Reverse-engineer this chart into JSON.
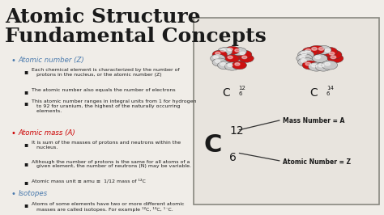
{
  "title_line1": "Atomic Structure",
  "title_line2": "Fundamental Concepts",
  "title_color": "#1a1a1a",
  "title_fontsize": 18,
  "bg_color": "#f0ede8",
  "bullet_color_red": "#cc0000",
  "bullet_color_blue": "#4a7aad",
  "text_color": "#1a1a1a",
  "heading1": "Atomic number (Z)",
  "heading1_color": "#4a7aad",
  "sub1a": "Each chemical element is characterized by the number of\n   protons in the nucleus, or the atomic number (Z)",
  "sub1b": "The atomic number also equals the number of electrons",
  "sub1c": "This atomic number ranges in integral units from 1 for hydrogen\n   to 92 for uranium, the highest of the naturally occurring\n   elements.",
  "heading2": "Atomic mass (A)",
  "heading2_color": "#cc0000",
  "sub2a": "It is sum of the masses of protons and neutrons within the\n   nucleus.",
  "sub2b": "Although the number of protons is the same for all atoms of a\n   given element, the number of neutrons (N) may be variable.",
  "sub2c": "Atomic mass unit ≡ amu ≡  1/12 mass of ¹²C",
  "heading3": "Isotopes",
  "heading3_color": "#4a7aad",
  "sub3a": "Atoms of some elements have two or more different atomic\n   masses are called isotopes. For example ¹²C, ¹³C, ¹´C.",
  "mass_number_label": "Mass Number = A",
  "atomic_number_label": "Atomic Number = Z"
}
